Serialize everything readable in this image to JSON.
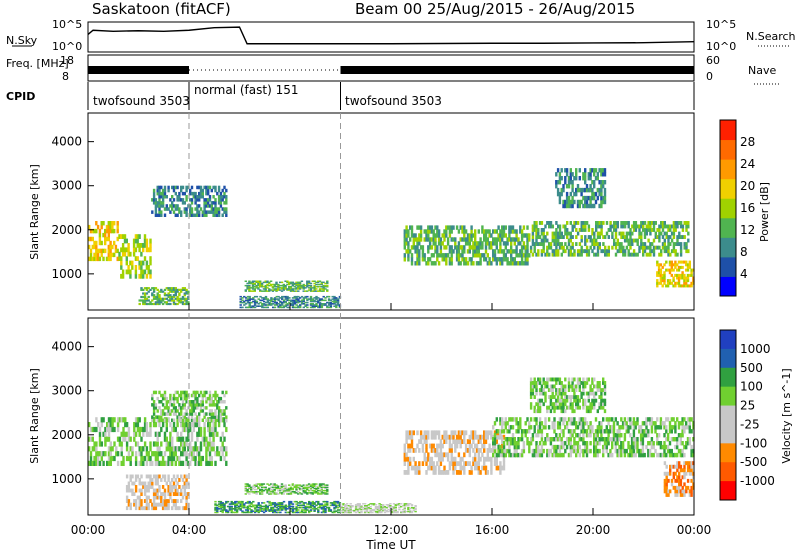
{
  "header": {
    "title": "Saskatoon (fitACF)",
    "beam_info": "Beam 00 25/Aug/2015 - 26/Aug/2015"
  },
  "colors": {
    "power_scale": [
      "#0000ff",
      "#1e50a8",
      "#3c8c8c",
      "#50b450",
      "#a0d200",
      "#f0d000",
      "#ff9a00",
      "#ff6a00",
      "#ff2000"
    ],
    "velocity_scale": [
      "#2040c0",
      "#2060b0",
      "#30a040",
      "#70d030",
      "#c8c8c8",
      "#c8c8c8",
      "#ff8a00",
      "#ff5a00",
      "#ff0000"
    ]
  },
  "chart_data": [
    {
      "type": "line",
      "panel": "N.Sky / N.Search",
      "ylabel_left": "N.Sky",
      "ylabel_right": "N.Search",
      "yticks_left": [
        "10^5",
        "10^0"
      ],
      "yticks_right": [
        "10^5",
        "10^0"
      ],
      "x": [
        0,
        0.2,
        1,
        2,
        3,
        4,
        5,
        6,
        6.3,
        7,
        8,
        10,
        12,
        14,
        16,
        18,
        20,
        22,
        24
      ],
      "series": [
        {
          "values": [
            3,
            3.8,
            3.6,
            3.7,
            3.6,
            3.8,
            4.3,
            4.4,
            1.2,
            1.2,
            1.2,
            1.2,
            1.2,
            1.25,
            1.3,
            1.3,
            1.35,
            1.4,
            1.6
          ]
        }
      ],
      "ylim": [
        0,
        5
      ]
    },
    {
      "type": "line",
      "panel": "Freq. / Nave",
      "ylabel_left": "Freq. [MHz]",
      "ylabel_right": "Nave",
      "yticks_left": [
        "18",
        "8"
      ],
      "yticks_right": [
        "60",
        "0"
      ],
      "segments": [
        {
          "start": 0,
          "end": 4,
          "style": "solid"
        },
        {
          "start": 4,
          "end": 10,
          "style": "dotted"
        },
        {
          "start": 10,
          "end": 24,
          "style": "solid"
        }
      ]
    },
    {
      "type": "table",
      "panel": "CPID",
      "label": "CPID",
      "entries": [
        {
          "start": 0,
          "end": 4,
          "text": "twofsound 3503"
        },
        {
          "start": 4,
          "end": 10,
          "text": "normal (fast) 151"
        },
        {
          "start": 10,
          "end": 24,
          "text": "twofsound 3503"
        }
      ]
    },
    {
      "type": "heatmap",
      "panel": "Power",
      "ylabel": "Slant Range [km]",
      "yticks": [
        1000,
        2000,
        3000,
        4000
      ],
      "ylim": [
        180,
        4650
      ],
      "xlim": [
        0,
        24
      ],
      "colorbar": {
        "label": "Power [dB]",
        "ticks": [
          4,
          8,
          12,
          16,
          20,
          24,
          28
        ],
        "range": [
          0,
          32
        ]
      },
      "features": [
        {
          "t0": 0,
          "t1": 1.2,
          "r0": 1300,
          "r1": 2200,
          "level": 18
        },
        {
          "t0": 1.2,
          "t1": 2.5,
          "r0": 900,
          "r1": 1900,
          "level": 14
        },
        {
          "t0": 2.0,
          "t1": 4.0,
          "r0": 300,
          "r1": 700,
          "level": 10
        },
        {
          "t0": 2.5,
          "t1": 5.5,
          "r0": 2300,
          "r1": 3000,
          "level": 8
        },
        {
          "t0": 6.0,
          "t1": 10.0,
          "r0": 230,
          "r1": 500,
          "level": 6
        },
        {
          "t0": 6.2,
          "t1": 9.5,
          "r0": 600,
          "r1": 850,
          "level": 10
        },
        {
          "t0": 12.5,
          "t1": 17.5,
          "r0": 1200,
          "r1": 2100,
          "level": 12
        },
        {
          "t0": 17.5,
          "t1": 23.8,
          "r0": 1400,
          "r1": 2200,
          "level": 10
        },
        {
          "t0": 22.5,
          "t1": 24,
          "r0": 700,
          "r1": 1300,
          "level": 20
        },
        {
          "t0": 18.5,
          "t1": 20.5,
          "r0": 2500,
          "r1": 3400,
          "level": 6
        }
      ]
    },
    {
      "type": "heatmap",
      "panel": "Velocity",
      "ylabel": "Slant Range [km]",
      "yticks": [
        1000,
        2000,
        3000,
        4000
      ],
      "ylim": [
        180,
        4650
      ],
      "xlim": [
        0,
        24
      ],
      "colorbar": {
        "label": "Velocity [m s^-1]",
        "ticks": [
          "1000",
          "500",
          "100",
          "25",
          "-25",
          "-100",
          "-500",
          "-1000"
        ]
      },
      "features": [
        {
          "t0": 0,
          "t1": 5.5,
          "r0": 1300,
          "r1": 2400,
          "level": "25"
        },
        {
          "t0": 1.5,
          "t1": 4.0,
          "r0": 300,
          "r1": 1100,
          "level": "-100"
        },
        {
          "t0": 2.5,
          "t1": 5.5,
          "r0": 2300,
          "r1": 3000,
          "level": "25"
        },
        {
          "t0": 5.0,
          "t1": 10.0,
          "r0": 230,
          "r1": 500,
          "level": "100"
        },
        {
          "t0": 6.2,
          "t1": 9.5,
          "r0": 650,
          "r1": 900,
          "level": "25"
        },
        {
          "t0": 10.0,
          "t1": 13.0,
          "r0": 230,
          "r1": 450,
          "level": "-25"
        },
        {
          "t0": 12.5,
          "t1": 16.5,
          "r0": 1100,
          "r1": 2100,
          "level": "-100"
        },
        {
          "t0": 16.0,
          "t1": 24,
          "r0": 1500,
          "r1": 2400,
          "level": "25"
        },
        {
          "t0": 22.8,
          "t1": 24,
          "r0": 600,
          "r1": 1400,
          "level": "-500"
        },
        {
          "t0": 17.5,
          "t1": 20.5,
          "r0": 2500,
          "r1": 3300,
          "level": "25"
        }
      ]
    }
  ],
  "xaxis": {
    "label": "Time UT",
    "ticks": [
      "00:00",
      "04:00",
      "08:00",
      "12:00",
      "16:00",
      "20:00",
      "00:00"
    ],
    "tick_hours": [
      0,
      4,
      8,
      12,
      16,
      20,
      24
    ],
    "markers": [
      4,
      10
    ]
  }
}
